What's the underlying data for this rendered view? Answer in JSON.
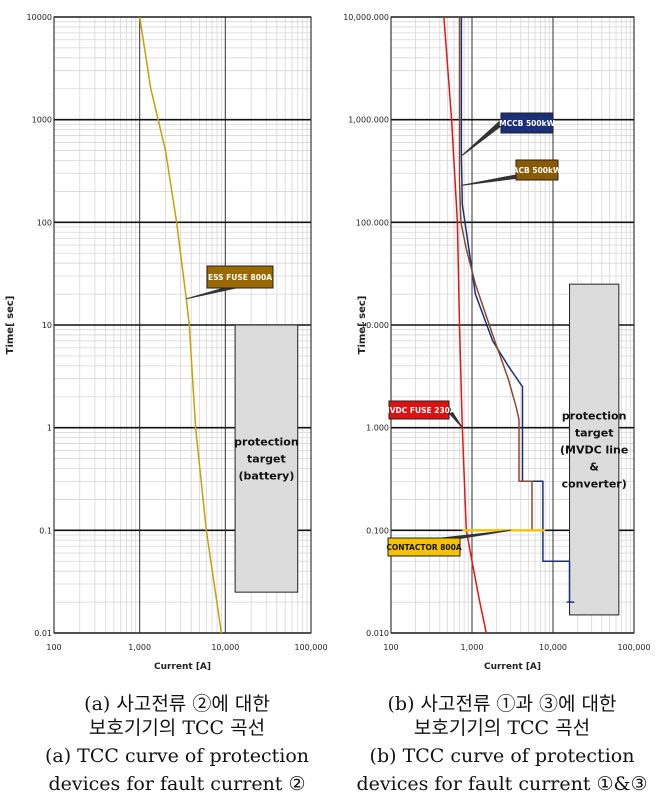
{
  "chart_data": [
    {
      "type": "line",
      "title": "",
      "xlabel": "Current [A]",
      "ylabel": "Time[ sec]",
      "x_scale": "log",
      "y_scale": "log",
      "xlim": [
        100,
        100000
      ],
      "ylim": [
        0.01,
        10000
      ],
      "x_ticks": [
        "100",
        "1,000",
        "10,000",
        "100,000"
      ],
      "y_ticks": [
        "10000",
        "1000",
        "100",
        "10",
        "1",
        "0.1",
        "0.01"
      ],
      "grid": true,
      "series": [
        {
          "color": "#c8a000",
          "x": [
            1000,
            1350,
            2000,
            2700,
            3500,
            3800,
            4500,
            6000,
            9000
          ],
          "y": [
            10000,
            2000,
            500,
            100,
            18,
            10,
            1,
            0.1,
            0.01
          ]
        }
      ],
      "annotations": [
        {
          "text": "ESS FUSE 800A",
          "bg": "#9a6a00",
          "fg": "#ffffff",
          "target_x": 3500,
          "target_y": 18
        }
      ],
      "target_box": {
        "lines": [
          "protection",
          "target",
          "(battery)"
        ],
        "x0": 13000,
        "x1": 70000,
        "y0": 0.025,
        "y1": 10
      }
    },
    {
      "type": "line",
      "title": "",
      "xlabel": "Current [A]",
      "ylabel": "Time[ sec]",
      "x_scale": "log",
      "y_scale": "log",
      "xlim": [
        100,
        100000
      ],
      "ylim": [
        0.01,
        10000
      ],
      "x_ticks": [
        "100",
        "1,000",
        "10,000",
        "100,000"
      ],
      "y_ticks": [
        "10,000.000",
        "1,000.000",
        "100.000",
        "10.000",
        "1.000",
        "0.100",
        "0.010"
      ],
      "grid": true,
      "series": [
        {
          "color": "#ee1111",
          "x": [
            450,
            560,
            660,
            700,
            760,
            850,
            1000,
            1250,
            1500
          ],
          "y": [
            10000,
            1000,
            100,
            10,
            1,
            0.1,
            0.05,
            0.02,
            0.01
          ]
        },
        {
          "color": "#1a2f7a",
          "x": [
            740,
            740,
            760,
            900,
            1100,
            1800,
            2800,
            4200,
            4200,
            7500,
            7500,
            16000,
            16000,
            18000,
            18000,
            15000,
            15000,
            18000
          ],
          "y": [
            10000,
            450,
            150,
            60,
            20,
            7,
            4,
            2.5,
            0.3,
            0.3,
            0.05,
            0.05,
            0.02,
            0.02,
            0.02,
            0.02,
            0.02,
            0.02
          ]
        },
        {
          "color": "#8b4a2b",
          "x": [
            700,
            700,
            730,
            850,
            1100,
            1800,
            2800,
            3500,
            3800,
            3800,
            5500,
            5500
          ],
          "y": [
            10000,
            250,
            100,
            55,
            25,
            8,
            3,
            1.6,
            1.2,
            0.3,
            0.3,
            0.1
          ]
        },
        {
          "color": "#f4c200",
          "x": [
            760,
            3000,
            8000
          ],
          "y": [
            0.1,
            0.1,
            0.1
          ]
        }
      ],
      "annotations": [
        {
          "text": "MCCB 500kW",
          "bg": "#1a2f7a",
          "fg": "#ffffff",
          "target_x": 760,
          "target_y": 450
        },
        {
          "text": "ACB 500kW",
          "bg": "#8b5a00",
          "fg": "#ffffff",
          "target_x": 760,
          "target_y": 230
        },
        {
          "text": "MVDC FUSE 230A",
          "bg": "#dd1111",
          "fg": "#ffffff",
          "target_x": 760,
          "target_y": 1
        },
        {
          "text": "CONTACTOR 800A",
          "bg": "#f4c200",
          "fg": "#111111",
          "target_x": 3000,
          "target_y": 0.1
        }
      ],
      "target_box": {
        "lines": [
          "protection",
          "target",
          "(MVDC line",
          "&",
          "converter)"
        ],
        "x0": 16000,
        "x1": 65000,
        "y0": 0.015,
        "y1": 25
      }
    }
  ],
  "captions": {
    "a": {
      "ko_line1": "(a) 사고전류 ②에 대한",
      "ko_line2": "보호기기의 TCC 곡선",
      "en_line1": "(a) TCC curve of protection",
      "en_line2": "devices for fault current ②"
    },
    "b": {
      "ko_line1": "(b) 사고전류 ①과 ③에 대한",
      "ko_line2": "보호기기의 TCC 곡선",
      "en_line1": "(b) TCC curve of protection",
      "en_line2": "devices for fault current ①&③"
    }
  }
}
